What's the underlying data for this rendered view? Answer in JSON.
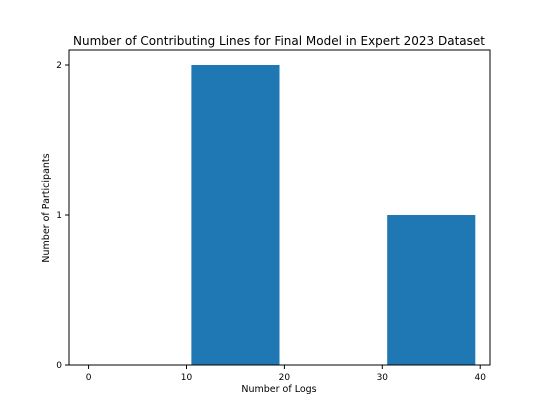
{
  "chart_data": {
    "type": "bar",
    "title": "Number of Contributing Lines for Final Model in Expert 2023 Dataset",
    "xlabel": "Number of Logs",
    "ylabel": "Number of Participants",
    "xlim": [
      -2,
      41
    ],
    "ylim": [
      0,
      2.1
    ],
    "xticks": [
      0,
      10,
      20,
      30,
      40
    ],
    "yticks": [
      0,
      1,
      2
    ],
    "bins": [
      {
        "start": 10.5,
        "end": 19.5,
        "value": 2
      },
      {
        "start": 30.5,
        "end": 39.5,
        "value": 1
      }
    ],
    "grid": false,
    "legend": "none",
    "bar_color": "#1f77b4"
  }
}
